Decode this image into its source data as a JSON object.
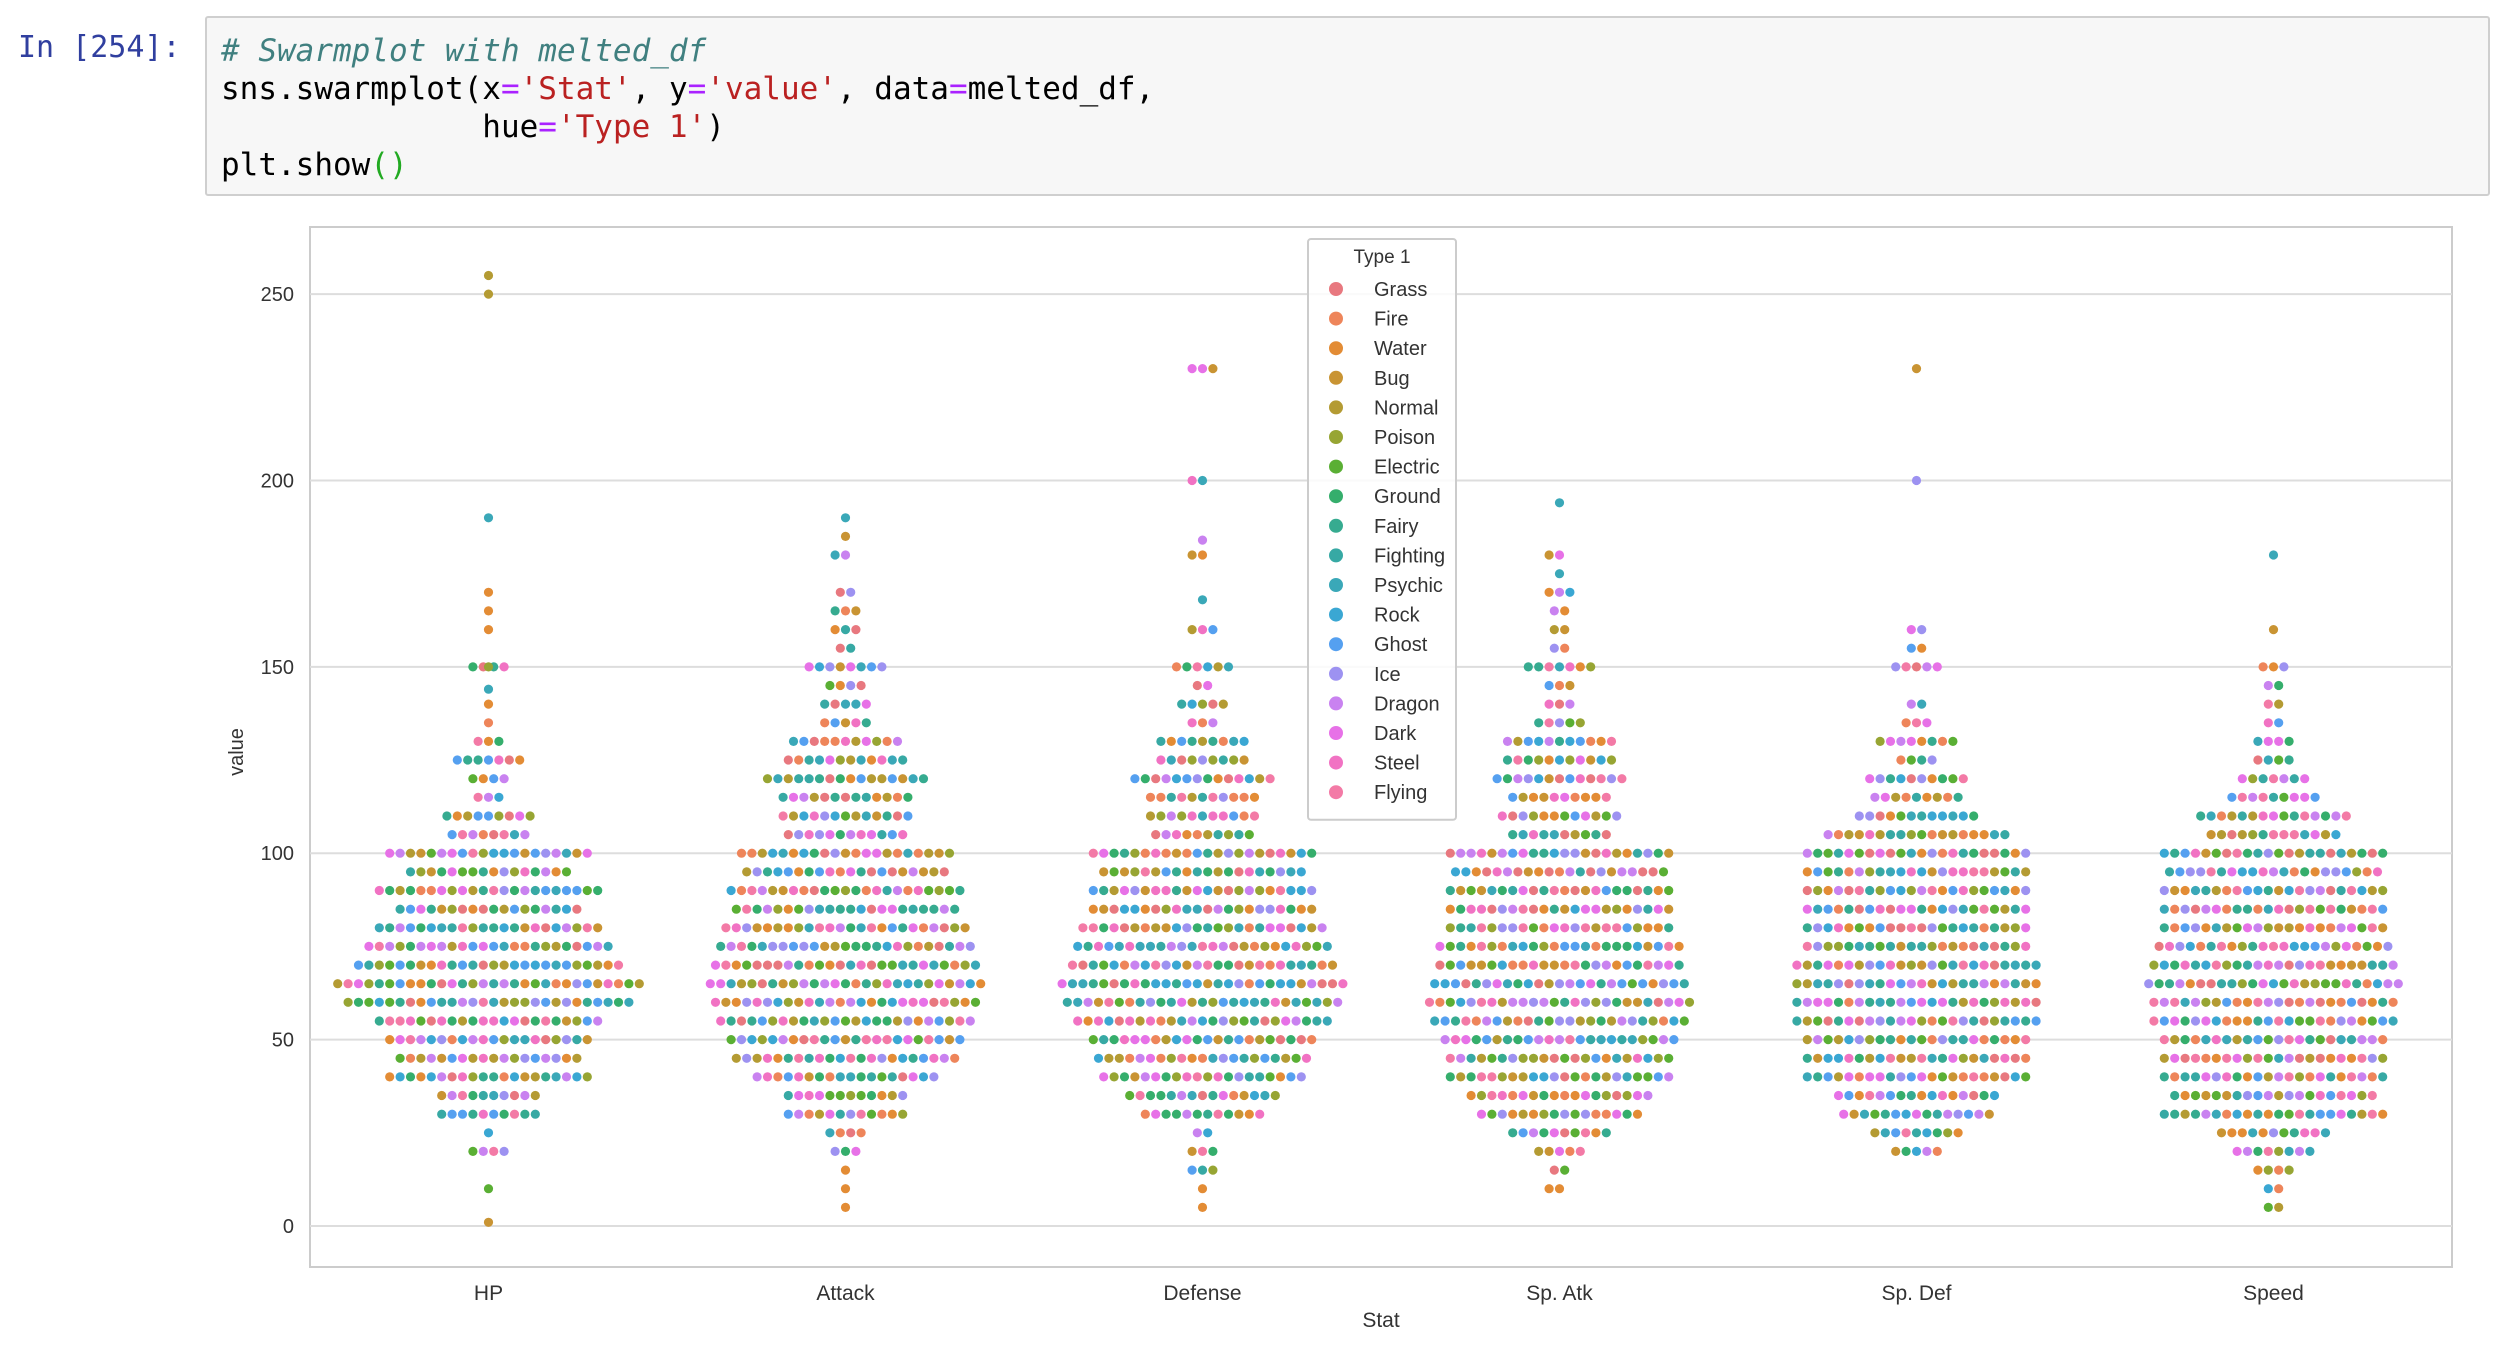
{
  "cell": {
    "prompt": "In [254]:",
    "code_lines": [
      [
        {
          "t": "# Swarmplot with melted_df",
          "c": "cm"
        }
      ],
      [
        {
          "t": "sns.swarmplot(x",
          "c": ""
        },
        {
          "t": "=",
          "c": "op"
        },
        {
          "t": "'Stat'",
          "c": "st"
        },
        {
          "t": ", y",
          "c": ""
        },
        {
          "t": "=",
          "c": "op"
        },
        {
          "t": "'value'",
          "c": "st"
        },
        {
          "t": ", data",
          "c": ""
        },
        {
          "t": "=",
          "c": "op"
        },
        {
          "t": "melted_df,",
          "c": ""
        }
      ],
      [
        {
          "t": "              hue",
          "c": ""
        },
        {
          "t": "=",
          "c": "op"
        },
        {
          "t": "'Type 1'",
          "c": "st"
        },
        {
          "t": ")",
          "c": ""
        }
      ],
      [
        {
          "t": "plt.show",
          "c": ""
        },
        {
          "t": "()",
          "c": "pa"
        }
      ]
    ]
  },
  "chart_data": {
    "type": "scatter",
    "xlabel": "Stat",
    "ylabel": "value",
    "categories": [
      "HP",
      "Attack",
      "Defense",
      "Sp. Atk",
      "Sp. Def",
      "Speed"
    ],
    "yticks": [
      0,
      50,
      100,
      150,
      200,
      250
    ],
    "ylim": [
      -11,
      268
    ],
    "grid": true,
    "legend": {
      "title": "Type 1",
      "placement": "top-center",
      "entries": [
        {
          "name": "Grass",
          "color": "#e8787f"
        },
        {
          "name": "Fire",
          "color": "#ee855a"
        },
        {
          "name": "Water",
          "color": "#e38c35"
        },
        {
          "name": "Bug",
          "color": "#c99433"
        },
        {
          "name": "Normal",
          "color": "#b49b33"
        },
        {
          "name": "Poison",
          "color": "#97a533"
        },
        {
          "name": "Electric",
          "color": "#5aaf34"
        },
        {
          "name": "Ground",
          "color": "#35ae6c"
        },
        {
          "name": "Fairy",
          "color": "#36ab90"
        },
        {
          "name": "Fighting",
          "color": "#37a9a4"
        },
        {
          "name": "Psychic",
          "color": "#3aa8b8"
        },
        {
          "name": "Rock",
          "color": "#3aa7d3"
        },
        {
          "name": "Ghost",
          "color": "#55a0f0"
        },
        {
          "name": "Ice",
          "color": "#9d92f1"
        },
        {
          "name": "Dragon",
          "color": "#c982f0"
        },
        {
          "name": "Dark",
          "color": "#e771e7"
        },
        {
          "name": "Steel",
          "color": "#f172c3"
        },
        {
          "name": "Flying",
          "color": "#f37aa6"
        }
      ]
    },
    "swarms": [
      {
        "stat": "HP",
        "rows": [
          [
            100,
            20
          ],
          [
            95,
            16
          ],
          [
            90,
            22
          ],
          [
            85,
            18
          ],
          [
            80,
            22
          ],
          [
            75,
            24
          ],
          [
            70,
            26
          ],
          [
            65,
            30
          ],
          [
            60,
            28
          ],
          [
            55,
            22
          ],
          [
            50,
            20
          ],
          [
            45,
            18
          ],
          [
            40,
            20
          ],
          [
            35,
            10
          ],
          [
            30,
            10
          ],
          [
            110,
            9
          ],
          [
            105,
            8
          ],
          [
            115,
            3
          ],
          [
            120,
            4
          ],
          [
            125,
            7
          ],
          [
            130,
            3
          ],
          [
            150,
            4
          ],
          [
            25,
            1
          ],
          [
            20,
            4
          ]
        ],
        "outliers": [
          [
            255,
            "#b49b33"
          ],
          [
            250,
            "#b49b33"
          ],
          [
            190,
            "#3aa8b8"
          ],
          [
            170,
            "#e38c35"
          ],
          [
            165,
            "#e38c35"
          ],
          [
            160,
            "#e38c35"
          ],
          [
            150,
            "#97a533"
          ],
          [
            144,
            "#3aa8b8"
          ],
          [
            140,
            "#e38c35"
          ],
          [
            135,
            "#ee855a"
          ],
          [
            10,
            "#5aaf34"
          ],
          [
            1,
            "#c99433"
          ]
        ]
      },
      {
        "stat": "Attack",
        "rows": [
          [
            100,
            21
          ],
          [
            95,
            20
          ],
          [
            90,
            23
          ],
          [
            85,
            22
          ],
          [
            80,
            24
          ],
          [
            75,
            25
          ],
          [
            70,
            26
          ],
          [
            65,
            27
          ],
          [
            60,
            26
          ],
          [
            55,
            25
          ],
          [
            50,
            23
          ],
          [
            45,
            22
          ],
          [
            40,
            18
          ],
          [
            35,
            12
          ],
          [
            30,
            12
          ],
          [
            110,
            13
          ],
          [
            105,
            12
          ],
          [
            115,
            13
          ],
          [
            120,
            16
          ],
          [
            125,
            12
          ],
          [
            130,
            11
          ],
          [
            135,
            5
          ],
          [
            140,
            5
          ],
          [
            145,
            4
          ],
          [
            150,
            8
          ],
          [
            155,
            2
          ],
          [
            160,
            3
          ],
          [
            165,
            3
          ],
          [
            170,
            2
          ],
          [
            25,
            4
          ],
          [
            20,
            3
          ]
        ],
        "outliers": [
          [
            190,
            "#3aa8b8"
          ],
          [
            185,
            "#c99433"
          ],
          [
            180,
            "#c982f0"
          ],
          [
            180,
            "#3aa8b8"
          ],
          [
            15,
            "#e38c35"
          ],
          [
            10,
            "#e38c35"
          ],
          [
            5,
            "#e38c35"
          ]
        ]
      },
      {
        "stat": "Defense",
        "rows": [
          [
            100,
            22
          ],
          [
            95,
            20
          ],
          [
            90,
            22
          ],
          [
            85,
            22
          ],
          [
            80,
            24
          ],
          [
            75,
            25
          ],
          [
            70,
            26
          ],
          [
            65,
            28
          ],
          [
            60,
            27
          ],
          [
            55,
            25
          ],
          [
            50,
            22
          ],
          [
            45,
            21
          ],
          [
            40,
            20
          ],
          [
            35,
            15
          ],
          [
            30,
            12
          ],
          [
            110,
            11
          ],
          [
            105,
            10
          ],
          [
            115,
            11
          ],
          [
            120,
            14
          ],
          [
            125,
            9
          ],
          [
            130,
            9
          ],
          [
            135,
            3
          ],
          [
            140,
            5
          ],
          [
            145,
            2
          ],
          [
            150,
            6
          ],
          [
            160,
            3
          ],
          [
            25,
            2
          ],
          [
            20,
            3
          ],
          [
            15,
            3
          ]
        ],
        "outliers": [
          [
            230,
            "#e771e7"
          ],
          [
            230,
            "#e771e7"
          ],
          [
            230,
            "#c99433"
          ],
          [
            200,
            "#3aa8b8"
          ],
          [
            200,
            "#f172c3"
          ],
          [
            184,
            "#c982f0"
          ],
          [
            180,
            "#e38c35"
          ],
          [
            180,
            "#c99433"
          ],
          [
            168,
            "#3aa8b8"
          ],
          [
            10,
            "#e38c35"
          ],
          [
            5,
            "#e38c35"
          ]
        ]
      },
      {
        "stat": "Sp. Atk",
        "rows": [
          [
            100,
            22
          ],
          [
            95,
            21
          ],
          [
            90,
            22
          ],
          [
            85,
            22
          ],
          [
            80,
            22
          ],
          [
            75,
            24
          ],
          [
            70,
            24
          ],
          [
            65,
            25
          ],
          [
            60,
            26
          ],
          [
            55,
            25
          ],
          [
            50,
            23
          ],
          [
            45,
            22
          ],
          [
            40,
            22
          ],
          [
            35,
            18
          ],
          [
            30,
            16
          ],
          [
            110,
            12
          ],
          [
            105,
            10
          ],
          [
            115,
            10
          ],
          [
            120,
            13
          ],
          [
            125,
            11
          ],
          [
            130,
            11
          ],
          [
            135,
            5
          ],
          [
            140,
            3
          ],
          [
            145,
            3
          ],
          [
            150,
            7
          ],
          [
            155,
            2
          ],
          [
            160,
            2
          ],
          [
            165,
            2
          ],
          [
            170,
            3
          ],
          [
            25,
            10
          ],
          [
            20,
            5
          ],
          [
            15,
            2
          ]
        ],
        "outliers": [
          [
            194,
            "#3aa8b8"
          ],
          [
            180,
            "#e771e7"
          ],
          [
            180,
            "#c99433"
          ],
          [
            175,
            "#3aa8b8"
          ],
          [
            10,
            "#e38c35"
          ],
          [
            10,
            "#e38c35"
          ]
        ]
      },
      {
        "stat": "Sp. Def",
        "rows": [
          [
            100,
            22
          ],
          [
            95,
            22
          ],
          [
            90,
            22
          ],
          [
            85,
            22
          ],
          [
            80,
            22
          ],
          [
            75,
            22
          ],
          [
            70,
            24
          ],
          [
            65,
            24
          ],
          [
            60,
            24
          ],
          [
            55,
            24
          ],
          [
            50,
            22
          ],
          [
            45,
            22
          ],
          [
            40,
            22
          ],
          [
            35,
            16
          ],
          [
            30,
            15
          ],
          [
            110,
            12
          ],
          [
            105,
            18
          ],
          [
            115,
            9
          ],
          [
            120,
            10
          ],
          [
            125,
            4
          ],
          [
            130,
            8
          ],
          [
            135,
            3
          ],
          [
            140,
            2
          ],
          [
            150,
            5
          ],
          [
            155,
            2
          ],
          [
            160,
            2
          ],
          [
            25,
            9
          ],
          [
            20,
            5
          ]
        ],
        "outliers": [
          [
            230,
            "#c99433"
          ],
          [
            200,
            "#9d92f1"
          ]
        ]
      },
      {
        "stat": "Speed",
        "rows": [
          [
            100,
            22
          ],
          [
            95,
            21
          ],
          [
            90,
            22
          ],
          [
            85,
            22
          ],
          [
            80,
            22
          ],
          [
            75,
            23
          ],
          [
            70,
            24
          ],
          [
            65,
            25
          ],
          [
            60,
            24
          ],
          [
            55,
            24
          ],
          [
            50,
            22
          ],
          [
            45,
            22
          ],
          [
            40,
            22
          ],
          [
            35,
            20
          ],
          [
            30,
            22
          ],
          [
            110,
            15
          ],
          [
            105,
            13
          ],
          [
            115,
            9
          ],
          [
            120,
            7
          ],
          [
            125,
            4
          ],
          [
            130,
            4
          ],
          [
            135,
            2
          ],
          [
            140,
            2
          ],
          [
            145,
            2
          ],
          [
            150,
            3
          ],
          [
            25,
            11
          ],
          [
            20,
            8
          ],
          [
            15,
            4
          ],
          [
            10,
            2
          ],
          [
            5,
            2
          ]
        ],
        "outliers": [
          [
            180,
            "#3aa8b8"
          ],
          [
            160,
            "#c99433"
          ]
        ]
      }
    ]
  }
}
